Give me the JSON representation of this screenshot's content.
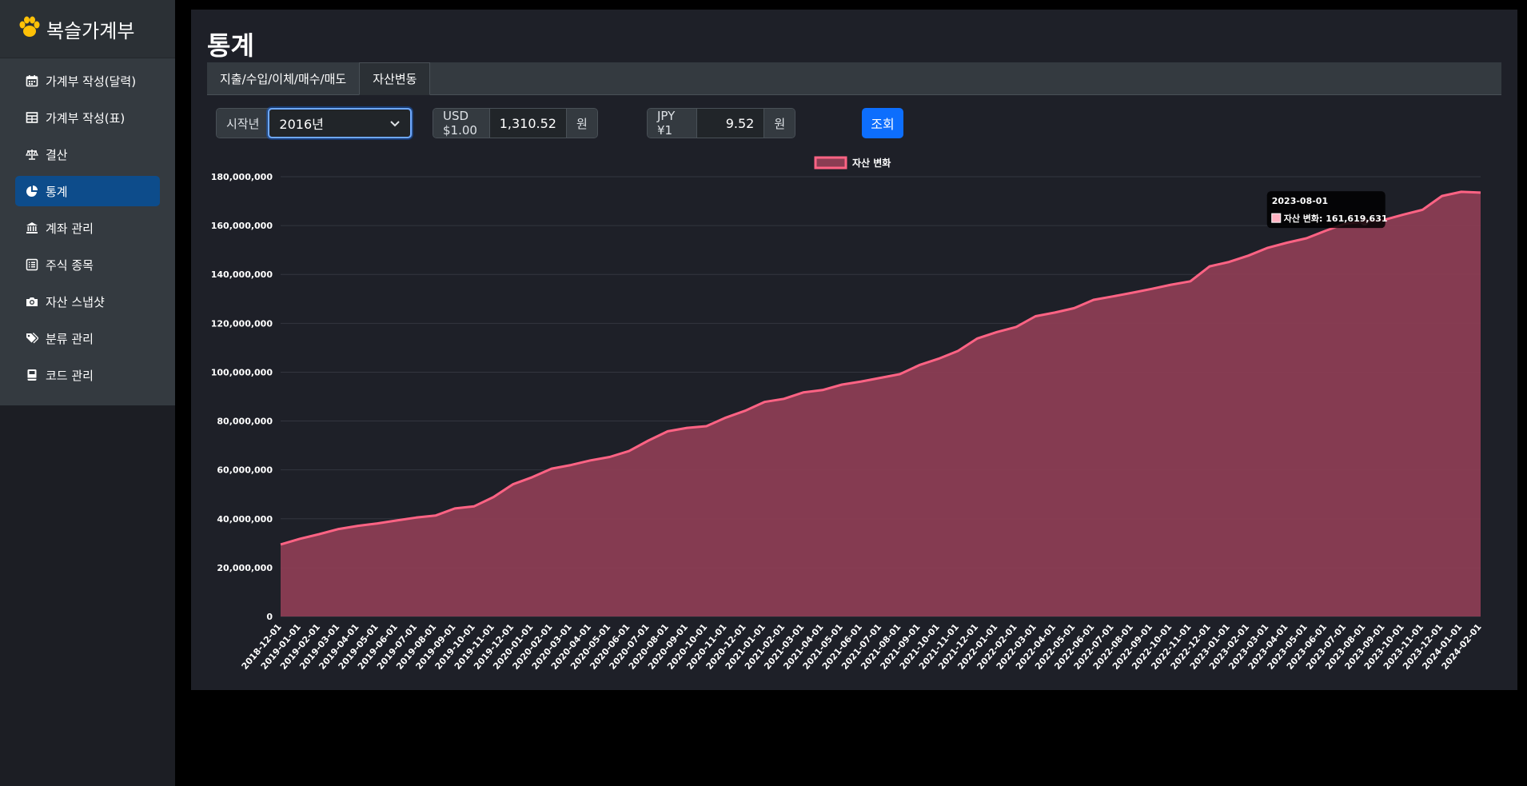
{
  "app": {
    "brand": "복슬가계부",
    "brand_icon": "paw-icon"
  },
  "sidebar": {
    "items": [
      {
        "label": "가계부 작성(달력)",
        "icon": "calendar-icon",
        "active": false
      },
      {
        "label": "가계부 작성(표)",
        "icon": "table-icon",
        "active": false
      },
      {
        "label": "결산",
        "icon": "scale-icon",
        "active": false
      },
      {
        "label": "통계",
        "icon": "pie-chart-icon",
        "active": true
      },
      {
        "label": "계좌 관리",
        "icon": "bank-icon",
        "active": false
      },
      {
        "label": "주식 종목",
        "icon": "list-icon",
        "active": false
      },
      {
        "label": "자산 스냅샷",
        "icon": "camera-icon",
        "active": false
      },
      {
        "label": "분류 관리",
        "icon": "tags-icon",
        "active": false
      },
      {
        "label": "코드 관리",
        "icon": "book-icon",
        "active": false
      }
    ]
  },
  "main": {
    "title": "통계",
    "tabs": [
      {
        "label": "지출/수입/이체/매수/매도",
        "active": false
      },
      {
        "label": "자산변동",
        "active": true
      }
    ]
  },
  "controls": {
    "start_year_label": "시작년",
    "start_year_value": "2016년",
    "usd_label": "USD $1.00",
    "usd_value": "1,310.52",
    "usd_suffix": "원",
    "jpy_label": "JPY ¥1",
    "jpy_value": "9.52",
    "jpy_suffix": "원",
    "query_label": "조회"
  },
  "colors": {
    "accent": "#0d6efd",
    "series_line": "#ff6384",
    "series_fill": "#8b3d53",
    "active_nav": "#0d4c8b"
  },
  "chart_data": {
    "type": "area",
    "legend": [
      "자산 변화"
    ],
    "legend_position": "top-center",
    "grid": true,
    "ylim": [
      0,
      180000000
    ],
    "y_ticks": [
      "0",
      "20,000,000",
      "40,000,000",
      "60,000,000",
      "80,000,000",
      "100,000,000",
      "120,000,000",
      "140,000,000",
      "160,000,000",
      "180,000,000"
    ],
    "x": [
      "2018-12-01",
      "2019-01-01",
      "2019-02-01",
      "2019-03-01",
      "2019-04-01",
      "2019-05-01",
      "2019-06-01",
      "2019-07-01",
      "2019-08-01",
      "2019-09-01",
      "2019-10-01",
      "2019-11-01",
      "2019-12-01",
      "2020-01-01",
      "2020-02-01",
      "2020-03-01",
      "2020-04-01",
      "2020-05-01",
      "2020-06-01",
      "2020-07-01",
      "2020-08-01",
      "2020-09-01",
      "2020-10-01",
      "2020-11-01",
      "2020-12-01",
      "2021-01-01",
      "2021-02-01",
      "2021-03-01",
      "2021-04-01",
      "2021-05-01",
      "2021-06-01",
      "2021-07-01",
      "2021-08-01",
      "2021-09-01",
      "2021-10-01",
      "2021-11-01",
      "2021-12-01",
      "2022-01-01",
      "2022-02-01",
      "2022-03-01",
      "2022-04-01",
      "2022-05-01",
      "2022-06-01",
      "2022-07-01",
      "2022-08-01",
      "2022-09-01",
      "2022-10-01",
      "2022-11-01",
      "2022-12-01",
      "2023-01-01",
      "2023-02-01",
      "2023-03-01",
      "2023-04-01",
      "2023-05-01",
      "2023-06-01",
      "2023-07-01",
      "2023-08-01",
      "2023-09-01",
      "2023-10-01",
      "2023-11-01",
      "2023-12-01",
      "2024-01-01",
      "2024-02-01"
    ],
    "series": [
      {
        "name": "자산 변화",
        "values": [
          29500000,
          31800000,
          33700000,
          35800000,
          37100000,
          38100000,
          39300000,
          40500000,
          41300000,
          44200000,
          45100000,
          48900000,
          54100000,
          57000000,
          60500000,
          62000000,
          63900000,
          65300000,
          67700000,
          72000000,
          75800000,
          77200000,
          77900000,
          81400000,
          84200000,
          87800000,
          89100000,
          91700000,
          92700000,
          94900000,
          96200000,
          97700000,
          99200000,
          102900000,
          105500000,
          108700000,
          113800000,
          116400000,
          118500000,
          122900000,
          124400000,
          126200000,
          129600000,
          131000000,
          132500000,
          134100000,
          135800000,
          137200000,
          143300000,
          145100000,
          147700000,
          150900000,
          153000000,
          154800000,
          157900000,
          160800000,
          161619631,
          162300000,
          164500000,
          166500000,
          172100000,
          173800000,
          173500000
        ]
      }
    ],
    "tooltip": {
      "title": "2023-08-01",
      "text": "자산 변화: 161,619,631"
    }
  }
}
